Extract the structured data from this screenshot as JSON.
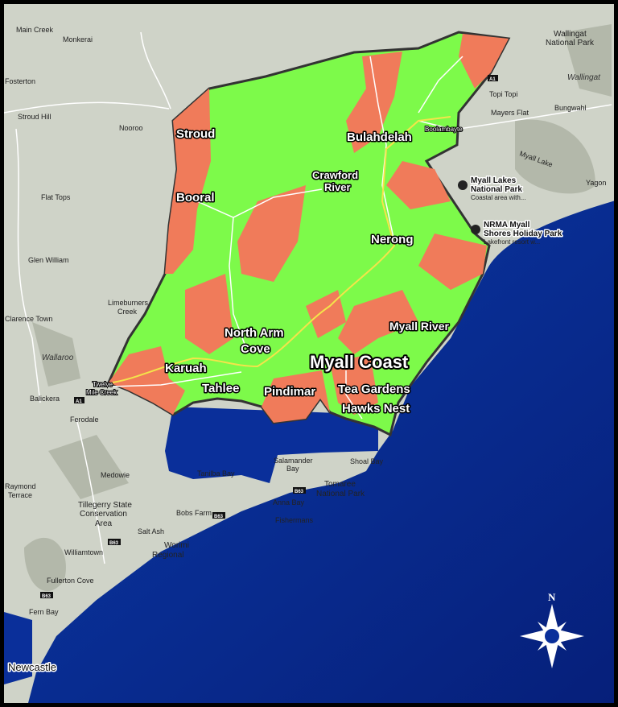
{
  "map": {
    "title": "Myall Coast",
    "colors": {
      "region": "#7dfa4a",
      "patches": "#f07b5a",
      "ocean": "#0a2f9a",
      "land": "#cfd3c8",
      "boundary": "#333333",
      "highway": "#f4e44a"
    },
    "towns": [
      "Stroud",
      "Bulahdelah",
      "Crawford",
      "River",
      "Booral",
      "Nerong",
      "North Arm",
      "Cove",
      "Myall River",
      "Karuah",
      "Tahlee",
      "Pindimar",
      "Tea Gardens",
      "Hawks Nest"
    ],
    "small_labels": [
      "Boolambayte",
      "Twelve",
      "Mile Creek"
    ],
    "background_places": [
      "Main Creek",
      "Monkerai",
      "Fosterton",
      "Stroud Hill",
      "Nooroo",
      "Flat Tops",
      "Glen William",
      "Limeburners",
      "Creek",
      "Clarence Town",
      "Balickera",
      "Ferodale",
      "Medowie",
      "Raymond",
      "Terrace",
      "Williamtown",
      "Fullerton Cove",
      "Fern Bay",
      "Newcastle",
      "Salt Ash",
      "Bobs Farm",
      "Tanilba Bay",
      "Salamander",
      "Bay",
      "Anna Bay",
      "Fishermans",
      "Shoal Bay",
      "Topi Topi",
      "Mayers Flat",
      "Bungwahl",
      "Yagon",
      "Wallingat",
      "National Park",
      "Wallingat",
      "Myall Lake"
    ],
    "parks": [
      "Tillegerry State",
      "Conservation",
      "Area",
      "Tomaree",
      "National Park",
      "Worimi",
      "Regional"
    ],
    "italic_labels": [
      "Wallaroo"
    ],
    "pois": [
      {
        "name": "Myall Lakes",
        "name2": "National Park",
        "desc": "Coastal area with...",
        "icon": "park-pin-icon"
      },
      {
        "name": "NRMA Myall",
        "name2": "Shores Holiday Park",
        "desc": "Lakefront resort w...",
        "icon": "campground-pin-icon"
      }
    ],
    "road_shields": [
      "A1",
      "A1",
      "B63",
      "B63",
      "B63",
      "B63"
    ],
    "compass_north": "N"
  }
}
